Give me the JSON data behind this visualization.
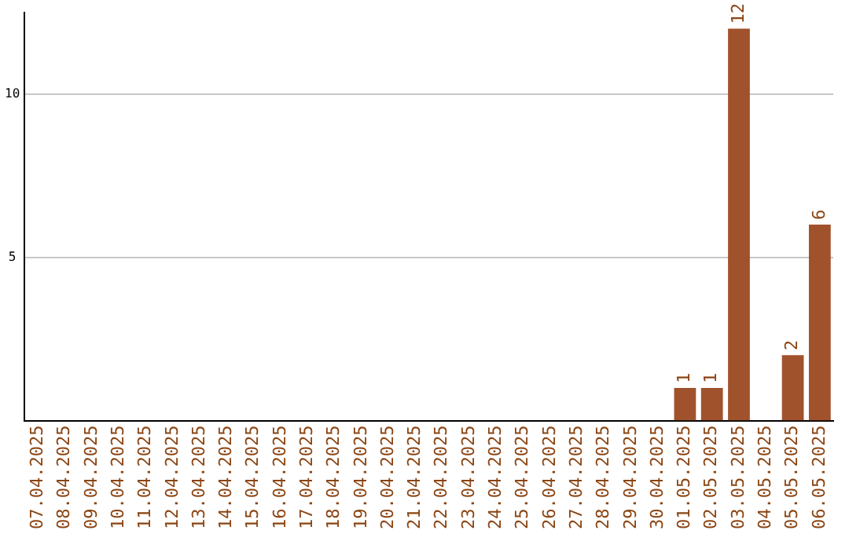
{
  "chart_data": {
    "type": "bar",
    "categories": [
      "07.04.2025",
      "08.04.2025",
      "09.04.2025",
      "10.04.2025",
      "11.04.2025",
      "12.04.2025",
      "13.04.2025",
      "14.04.2025",
      "15.04.2025",
      "16.04.2025",
      "17.04.2025",
      "18.04.2025",
      "19.04.2025",
      "20.04.2025",
      "21.04.2025",
      "22.04.2025",
      "23.04.2025",
      "24.04.2025",
      "25.04.2025",
      "26.04.2025",
      "27.04.2025",
      "28.04.2025",
      "29.04.2025",
      "30.04.2025",
      "01.05.2025",
      "02.05.2025",
      "03.05.2025",
      "04.05.2025",
      "05.05.2025",
      "06.05.2025"
    ],
    "values": [
      0,
      0,
      0,
      0,
      0,
      0,
      0,
      0,
      0,
      0,
      0,
      0,
      0,
      0,
      0,
      0,
      0,
      0,
      0,
      0,
      0,
      0,
      0,
      0,
      1,
      1,
      12,
      0,
      2,
      6
    ],
    "value_labels": [
      null,
      null,
      null,
      null,
      null,
      null,
      null,
      null,
      null,
      null,
      null,
      null,
      null,
      null,
      null,
      null,
      null,
      null,
      null,
      null,
      null,
      null,
      null,
      null,
      "1",
      "1",
      "12",
      null,
      "2",
      "6"
    ],
    "color": "#a0522d",
    "ylim": [
      0,
      12.5
    ],
    "yticks": [
      5,
      10
    ],
    "grid": "y"
  }
}
